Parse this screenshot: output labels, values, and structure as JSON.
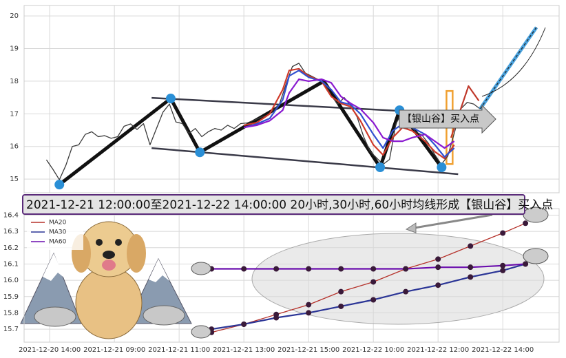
{
  "chart_data": [
    {
      "type": "line",
      "xlim": [
        -0.79,
        15.74
      ],
      "ylim": [
        14.58,
        20.32
      ],
      "xticks": [
        0,
        2,
        4,
        6,
        8,
        10,
        12,
        14
      ],
      "yticks": [
        15,
        16,
        17,
        18,
        19,
        20
      ],
      "grid": true,
      "series": [
        {
          "color": "#3a3a3a",
          "x": [
            -0.1,
            0.1,
            0.3,
            0.5,
            0.7,
            0.9,
            1.1,
            1.3,
            1.5,
            1.7,
            1.9,
            2.1,
            2.3,
            2.5,
            2.7,
            2.9,
            3.1,
            3.3,
            3.5,
            3.7,
            3.9,
            4.1,
            4.3,
            4.5,
            4.7,
            4.9,
            5.1,
            5.3,
            5.5,
            5.7,
            5.9,
            6.1,
            6.3,
            6.5,
            6.7,
            6.9,
            7.1,
            7.3,
            7.5,
            7.7,
            7.9,
            8.1,
            8.3,
            8.5,
            8.7,
            8.9,
            9.1,
            9.3,
            9.5,
            9.7,
            9.9,
            10.1,
            10.3,
            10.5,
            10.7,
            10.9,
            11.1,
            11.3,
            11.5,
            11.7,
            11.9,
            12.1,
            12.3,
            12.5,
            12.7,
            12.9,
            13.1,
            13.3
          ],
          "values": [
            15.59,
            15.3,
            14.98,
            15.42,
            16.0,
            16.05,
            16.37,
            16.45,
            16.3,
            16.33,
            16.25,
            16.3,
            16.62,
            16.69,
            16.52,
            16.7,
            16.05,
            16.55,
            17.05,
            17.3,
            16.75,
            16.7,
            16.4,
            16.55,
            16.3,
            16.45,
            16.55,
            16.5,
            16.65,
            16.55,
            16.7,
            16.72,
            16.8,
            16.88,
            16.95,
            17.1,
            17.3,
            17.9,
            18.45,
            18.55,
            18.25,
            18.15,
            18.05,
            17.95,
            17.55,
            17.3,
            17.5,
            17.25,
            16.9,
            16.3,
            15.85,
            15.65,
            15.45,
            15.6,
            16.7,
            17.05,
            16.7,
            16.45,
            16.35,
            16.1,
            15.75,
            15.45,
            15.7,
            16.4,
            17.15,
            17.35,
            17.3,
            17.15
          ]
        },
        {
          "color": "#d03a2a",
          "x": [
            6.0,
            6.4,
            6.8,
            7.2,
            7.4,
            7.7,
            8.0,
            8.4,
            8.7,
            9.0,
            9.3,
            9.6,
            10.0,
            10.3,
            10.6,
            10.9,
            11.2,
            11.6,
            11.9,
            12.2,
            12.5
          ],
          "values": [
            16.65,
            16.73,
            17.0,
            17.74,
            18.33,
            18.38,
            18.16,
            18.0,
            17.53,
            17.32,
            17.22,
            16.79,
            16.05,
            15.74,
            16.27,
            16.58,
            16.48,
            16.16,
            15.84,
            15.63,
            16.05
          ]
        },
        {
          "color": "#3050d0",
          "x": [
            6.0,
            6.4,
            6.8,
            7.2,
            7.4,
            7.7,
            8.0,
            8.4,
            8.7,
            9.0,
            9.3,
            9.6,
            10.0,
            10.3,
            10.6,
            10.9,
            11.2,
            11.6,
            11.9,
            12.2,
            12.5
          ],
          "values": [
            16.58,
            16.69,
            16.86,
            17.43,
            18.16,
            18.33,
            18.12,
            18.0,
            17.74,
            17.36,
            17.28,
            17.0,
            16.37,
            15.95,
            16.48,
            16.69,
            16.58,
            16.37,
            16.05,
            15.68,
            15.95
          ]
        },
        {
          "color": "#8a1ad0",
          "x": [
            6.0,
            6.4,
            6.8,
            7.2,
            7.4,
            7.7,
            8.0,
            8.4,
            8.7,
            9.0,
            9.3,
            9.6,
            10.0,
            10.3,
            10.6,
            10.9,
            11.2,
            11.6,
            11.9,
            12.2,
            12.5
          ],
          "values": [
            16.58,
            16.65,
            16.79,
            17.11,
            17.64,
            18.06,
            18.0,
            18.06,
            17.95,
            17.53,
            17.32,
            17.15,
            16.73,
            16.27,
            16.16,
            16.16,
            16.27,
            16.37,
            16.16,
            15.95,
            16.16
          ]
        },
        {
          "color": "#c0392b",
          "x": [
            12.4,
            12.94,
            13.26
          ],
          "values": [
            16.27,
            17.85,
            17.4
          ]
        }
      ],
      "channels": [
        {
          "x": [
            3.15,
            12.51
          ],
          "values": [
            17.49,
            17.0
          ]
        },
        {
          "x": [
            3.15,
            12.62
          ],
          "values": [
            15.95,
            15.15
          ]
        }
      ],
      "zigzag": {
        "x": [
          0.3,
          3.74,
          4.64,
          8.47,
          10.21,
          10.81,
          12.11
        ],
        "values": [
          14.83,
          17.47,
          15.82,
          18.0,
          15.36,
          17.11,
          15.36
        ]
      },
      "pivots": {
        "color": "#2a8fd6",
        "x": [
          0.3,
          3.74,
          4.64,
          10.21,
          10.81,
          12.11
        ],
        "values": [
          14.83,
          17.47,
          15.82,
          15.36,
          17.11,
          15.36
        ]
      },
      "projection": {
        "color": "#4aa3df",
        "x": [
          13.3,
          15.04
        ],
        "values": [
          17.15,
          19.65
        ]
      },
      "highlight": {
        "color": "#f0a030",
        "x": [
          12.26,
          12.45
        ],
        "values": [
          17.7,
          15.46
        ]
      },
      "callout": "【银山谷】买入点",
      "banner": "2021-12-21 12:00:00至2021-12-22 14:00:00 20小时,30小时,60小时均线形成【银山谷】买入点"
    },
    {
      "type": "line",
      "xlim": [
        -0.79,
        15.74
      ],
      "ylim": [
        15.62,
        16.44
      ],
      "xticks": [
        {
          "value": 0,
          "label": "2021-12-20 14:00"
        },
        {
          "value": 2,
          "label": "2021-12-21 09:00"
        },
        {
          "value": 4,
          "label": "2021-12-21 11:00"
        },
        {
          "value": 6,
          "label": "2021-12-21 13:00"
        },
        {
          "value": 8,
          "label": "2021-12-21 15:00"
        },
        {
          "value": 10,
          "label": "2021-12-22 10:00"
        },
        {
          "value": 12,
          "label": "2021-12-22 12:00"
        },
        {
          "value": 14,
          "label": "2021-12-22 14:00"
        }
      ],
      "yticks": [
        15.7,
        15.8,
        15.9,
        {
          "value": 16,
          "label": "16.0"
        },
        16.1,
        16.2,
        16.3,
        16.4
      ],
      "grid": true,
      "series": [
        {
          "name": "MA20",
          "color": "#b5312a",
          "x": [
            5,
            6,
            7,
            8,
            9,
            10,
            11,
            12,
            13,
            14,
            14.7
          ],
          "values": [
            15.68,
            15.73,
            15.79,
            15.85,
            15.93,
            15.99,
            16.07,
            16.13,
            16.21,
            16.29,
            16.35
          ]
        },
        {
          "name": "MA30",
          "color": "#2b3596",
          "x": [
            5,
            6,
            7,
            8,
            9,
            10,
            11,
            12,
            13,
            14,
            14.7
          ],
          "values": [
            15.7,
            15.73,
            15.77,
            15.8,
            15.84,
            15.88,
            15.93,
            15.97,
            16.02,
            16.06,
            16.1
          ]
        },
        {
          "name": "MA60",
          "color": "#6a0dad",
          "x": [
            5,
            6,
            7,
            8,
            9,
            10,
            11,
            12,
            13,
            14,
            14.7
          ],
          "values": [
            16.07,
            16.07,
            16.07,
            16.07,
            16.07,
            16.07,
            16.07,
            16.08,
            16.08,
            16.09,
            16.1
          ]
        }
      ]
    }
  ]
}
